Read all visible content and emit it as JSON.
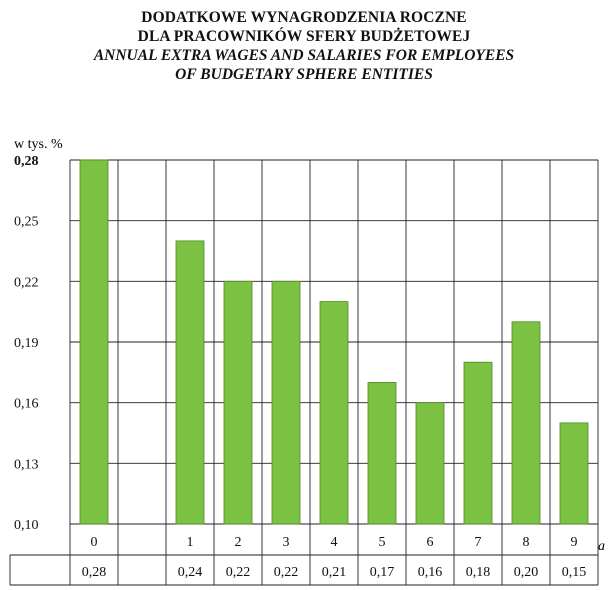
{
  "title": {
    "pl_line1": "DODATKOWE WYNAGRODZENIA ROCZNE",
    "pl_line2": "DLA PRACOWNIKÓW SFERY BUDŻETOWEJ",
    "en_line1": "ANNUAL EXTRA WAGES AND SALARIES FOR EMPLOYEES",
    "en_line2": "OF BUDGETARY SPHERE ENTITIES"
  },
  "chart_data": {
    "type": "bar",
    "ylabel": "w tys. %",
    "xlabel": "a",
    "ylim": [
      0.1,
      0.28
    ],
    "yticks": [
      "0,28",
      "0,25",
      "0,22",
      "0,19",
      "0,16",
      "0,13",
      "0,10"
    ],
    "ytick_values": [
      0.28,
      0.25,
      0.22,
      0.19,
      0.16,
      0.13,
      0.1
    ],
    "grid": true,
    "bar_color": "#7dc142",
    "bar_edge_color": "#4d8a24",
    "categories": [
      "0",
      "",
      "1",
      "2",
      "3",
      "4",
      "5",
      "6",
      "7",
      "8",
      "9"
    ],
    "values": [
      0.28,
      null,
      0.24,
      0.22,
      0.22,
      0.21,
      0.17,
      0.16,
      0.18,
      0.2,
      0.15
    ],
    "value_labels": [
      "0,28",
      "",
      "0,24",
      "0,22",
      "0,22",
      "0,21",
      "0,17",
      "0,16",
      "0,18",
      "0,20",
      "0,15"
    ]
  }
}
